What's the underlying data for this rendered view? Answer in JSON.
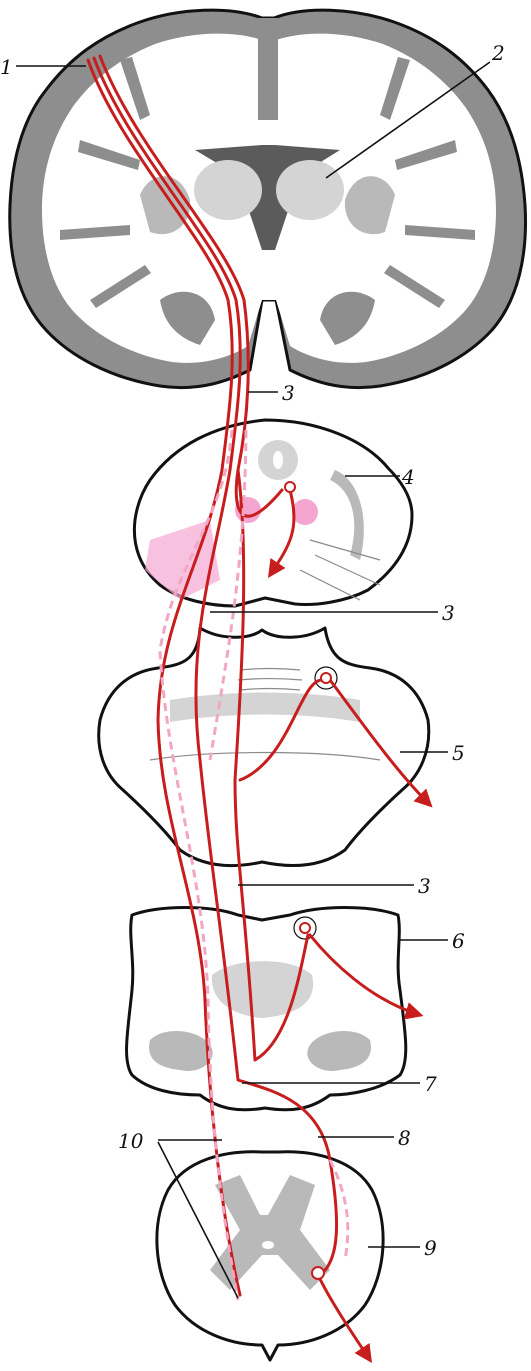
{
  "labels": {
    "l1": "1",
    "l2": "2",
    "l3a": "3",
    "l3b": "3",
    "l3c": "3",
    "l4": "4",
    "l5": "5",
    "l6": "6",
    "l7": "7",
    "l8": "8",
    "l9": "9",
    "l10": "10"
  },
  "colors": {
    "tract": "#c81d1d",
    "tract_crossed": "#f2a6c4",
    "nucleus": "#f4a6d1",
    "outline": "#111111"
  }
}
